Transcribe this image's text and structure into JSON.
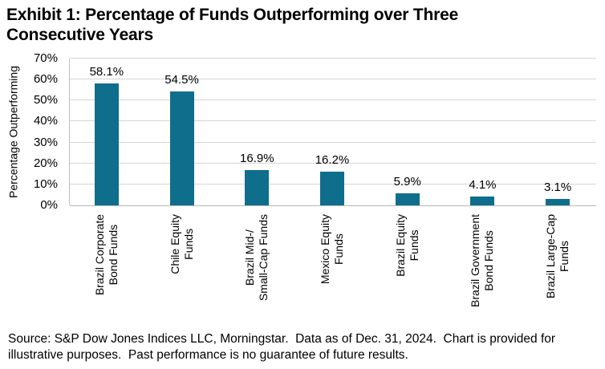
{
  "title": {
    "line1": "Exhibit 1: Percentage of Funds Outperforming over Three",
    "line2": "Consecutive Years"
  },
  "chart_data": {
    "type": "bar",
    "title": "Exhibit 1: Percentage of Funds Outperforming over Three Consecutive Years",
    "xlabel": "",
    "ylabel": "Percentage Outperforming",
    "ylim": [
      0,
      70
    ],
    "yticks": [
      0,
      10,
      20,
      30,
      40,
      50,
      60,
      70
    ],
    "ytick_labels": [
      "0%",
      "10%",
      "20%",
      "30%",
      "40%",
      "50%",
      "60%",
      "70%"
    ],
    "grid": "horizontal",
    "legend": "none",
    "bar_color": "#0E6E8C",
    "categories": [
      "Brazil Corporate Bond Funds",
      "Chile Equity Funds",
      "Brazil Mid-/Small-Cap Funds",
      "Mexico Equity Funds",
      "Brazil Equity Funds",
      "Brazil Government Bond Funds",
      "Brazil Large-Cap Funds"
    ],
    "categories_lines": [
      [
        "Brazil Corporate",
        "Bond Funds"
      ],
      [
        "Chile Equity",
        "Funds"
      ],
      [
        "Brazil Mid-/",
        "Small-Cap Funds"
      ],
      [
        "Mexico Equity",
        "Funds"
      ],
      [
        "Brazil Equity",
        "Funds"
      ],
      [
        "Brazil Government",
        "Bond Funds"
      ],
      [
        "Brazil Large-Cap",
        "Funds"
      ]
    ],
    "values": [
      58.1,
      54.5,
      16.9,
      16.2,
      5.9,
      4.1,
      3.1
    ],
    "value_labels": [
      "58.1%",
      "54.5%",
      "16.9%",
      "16.2%",
      "5.9%",
      "4.1%",
      "3.1%"
    ]
  },
  "footer": {
    "line1": "Source: S&P Dow Jones Indices LLC, Morningstar.  Data as of Dec. 31, 2024.  Chart is provided for",
    "line2": "illustrative purposes.  Past performance is no guarantee of future results."
  },
  "colors": {
    "gridline": "#D6D6D6",
    "axis": "#B8B8B8",
    "text": "#000000"
  }
}
